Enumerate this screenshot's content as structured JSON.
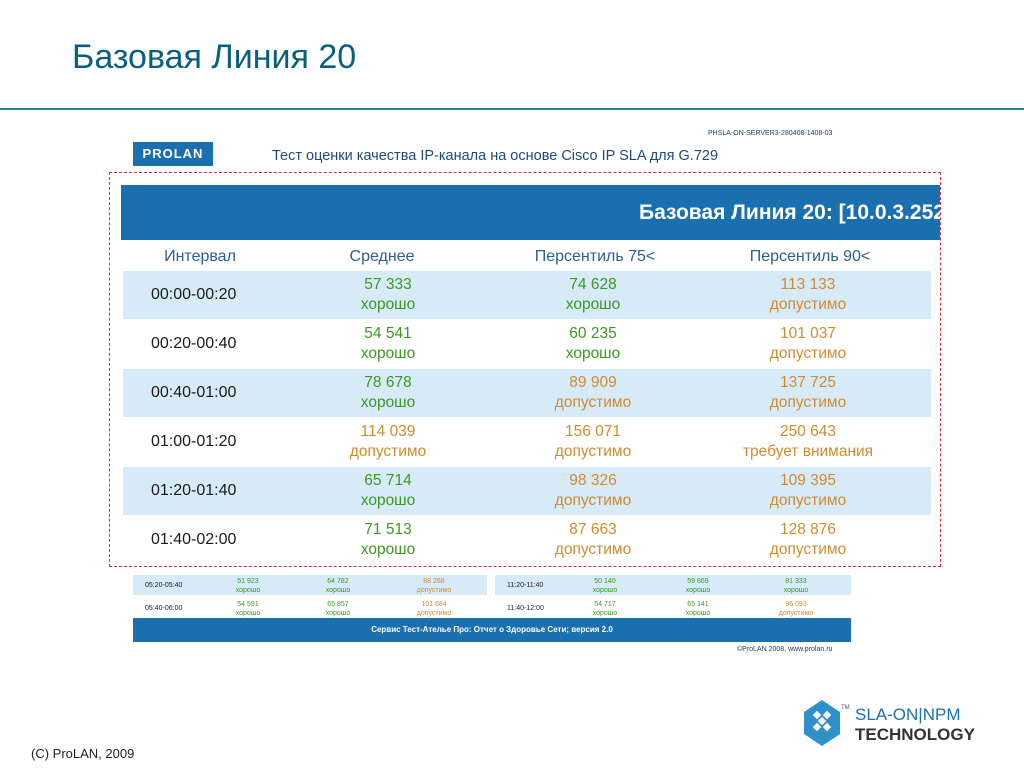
{
  "slide": {
    "title": "Базовая Линия 20",
    "copyright": "(C) ProLAN, 2009"
  },
  "report": {
    "id": "PHSLA-ON-SERVER3-280408-1408-03",
    "logo": "PROLAN",
    "title": "Тест оценки качества IP-канала на основе Cisco IP SLA для G.729",
    "footer": "Сервис Тест-Ательe Про: Отчет о Здоровье Сети; версия 2.0",
    "copyright": "©ProLAN 2008, www.prolan.ru"
  },
  "zoom": {
    "header": "Базовая Линия 20: [10.0.3.252",
    "columns": [
      "Интервал",
      "Среднее",
      "Персентиль 75<",
      "Персентиль 90<"
    ],
    "rows": [
      {
        "time": "00:00-00:20",
        "avg": "57 333",
        "avg_s": "хорошо",
        "p75": "74 628",
        "p75_s": "хорошо",
        "p90": "113 133",
        "p90_s": "допустимо"
      },
      {
        "time": "00:20-00:40",
        "avg": "54 541",
        "avg_s": "хорошо",
        "p75": "60 235",
        "p75_s": "хорошо",
        "p90": "101 037",
        "p90_s": "допустимо"
      },
      {
        "time": "00:40-01:00",
        "avg": "78 678",
        "avg_s": "хорошо",
        "p75": "89 909",
        "p75_s": "допустимо",
        "p90": "137 725",
        "p90_s": "допустимо"
      },
      {
        "time": "01:00-01:20",
        "avg": "114 039",
        "avg_s": "допустимо",
        "p75": "156 071",
        "p75_s": "допустимо",
        "p90": "250 643",
        "p90_s": "требует внимания"
      },
      {
        "time": "01:20-01:40",
        "avg": "65 714",
        "avg_s": "хорошо",
        "p75": "98 326",
        "p75_s": "допустимо",
        "p90": "109 395",
        "p90_s": "допустимо"
      },
      {
        "time": "01:40-02:00",
        "avg": "71 513",
        "avg_s": "хорошо",
        "p75": "87 663",
        "p75_s": "допустимо",
        "p90": "128 876",
        "p90_s": "допустимо"
      }
    ]
  },
  "bg_rows": [
    {
      "time": "05:20-05:40",
      "avg": "51 923",
      "avg_s": "хорошо",
      "p75": "64 782",
      "p75_s": "хорошо",
      "p90": "88 268",
      "p90_s": "допустимо",
      "time2": "11:20-11:40",
      "avg2": "50 140",
      "avg2_s": "хорошо",
      "p752": "59 869",
      "p752_s": "хорошо",
      "p902": "81 333",
      "p902_s": "хорошо"
    },
    {
      "time": "05:40-06:00",
      "avg": "54 591",
      "avg_s": "хорошо",
      "p75": "65 857",
      "p75_s": "хорошо",
      "p90": "101 684",
      "p90_s": "допустимо",
      "time2": "11:40-12:00",
      "avg2": "54 717",
      "avg2_s": "хорошо",
      "p752": "65 141",
      "p752_s": "хорошо",
      "p902": "96 093",
      "p902_s": "допустимо"
    }
  ],
  "brand": {
    "line1": "SLA-ON|NPM",
    "line2": "TECHNOLOGY",
    "tm": "TM"
  },
  "colors": {
    "accent_blue": "#1a6fae",
    "good": "#3a9a1f",
    "acceptable": "#d18b2f",
    "alt_row": "#d6eaf8"
  }
}
